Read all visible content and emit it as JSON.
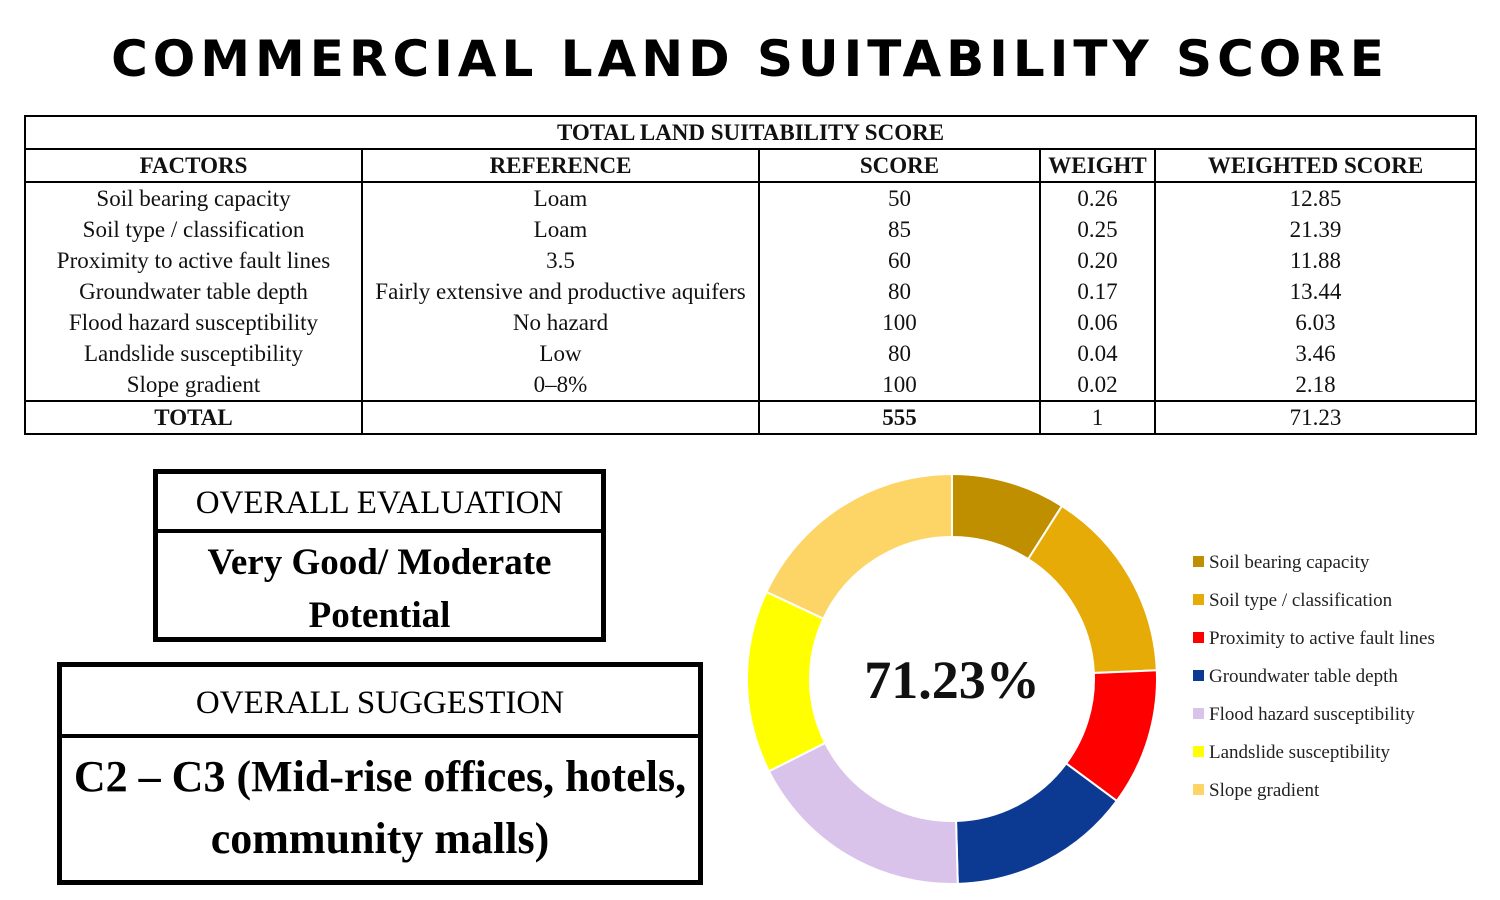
{
  "title": "COMMERCIAL LAND SUITABILITY SCORE",
  "table": {
    "caption": "TOTAL LAND SUITABILITY SCORE",
    "headers": [
      "FACTORS",
      "REFERENCE",
      "SCORE",
      "WEIGHT",
      "WEIGHTED SCORE"
    ],
    "rows": [
      {
        "factor": "Soil bearing capacity",
        "reference": "Loam",
        "score": "50",
        "weight": "0.26",
        "weighted": "12.85"
      },
      {
        "factor": "Soil type / classification",
        "reference": "Loam",
        "score": "85",
        "weight": "0.25",
        "weighted": "21.39"
      },
      {
        "factor": "Proximity to active fault lines",
        "reference": "3.5",
        "score": "60",
        "weight": "0.20",
        "weighted": "11.88"
      },
      {
        "factor": "Groundwater table depth",
        "reference": "Fairly extensive and productive aquifers",
        "score": "80",
        "weight": "0.17",
        "weighted": "13.44"
      },
      {
        "factor": "Flood hazard susceptibility",
        "reference": "No hazard",
        "score": "100",
        "weight": "0.06",
        "weighted": "6.03"
      },
      {
        "factor": "Landslide susceptibility",
        "reference": "Low",
        "score": "80",
        "weight": "0.04",
        "weighted": "3.46"
      },
      {
        "factor": "Slope gradient",
        "reference": "0–8%",
        "score": "100",
        "weight": "0.02",
        "weighted": "2.18"
      }
    ],
    "total": {
      "label": "TOTAL",
      "reference": "",
      "score": "555",
      "weight": "1",
      "weighted": "71.23"
    }
  },
  "evaluation": {
    "heading": "OVERALL EVALUATION",
    "value": "Very Good/ Moderate Potential"
  },
  "suggestion": {
    "heading": "OVERALL SUGGESTION",
    "value": "C2 – C3 (Mid-rise offices, hotels, community malls)"
  },
  "chart_data": {
    "type": "pie",
    "style": "donut",
    "center_label": "71.23%",
    "categories": [
      "Soil bearing capacity",
      "Soil type / classification",
      "Proximity to active fault lines",
      "Groundwater table depth",
      "Flood hazard susceptibility",
      "Landslide susceptibility",
      "Slope gradient"
    ],
    "values": [
      50,
      85,
      60,
      80,
      100,
      80,
      100
    ],
    "colors": [
      "#bf8f00",
      "#e7ab07",
      "#ff0000",
      "#0c3a93",
      "#d9c3ea",
      "#ffff00",
      "#fdd567"
    ],
    "legend_position": "right"
  }
}
